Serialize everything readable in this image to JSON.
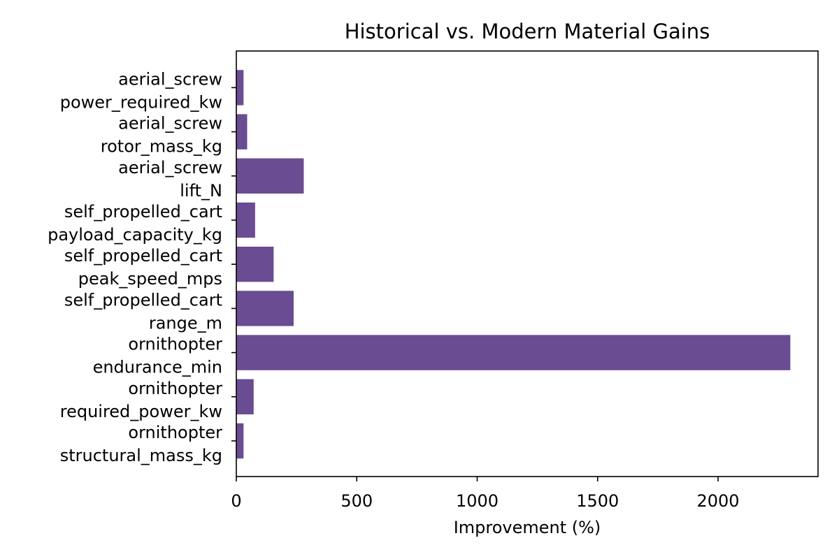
{
  "chart_data": {
    "type": "bar",
    "orientation": "horizontal",
    "title": "Historical vs. Modern Material Gains",
    "xlabel": "Improvement (%)",
    "ylabel": "",
    "xlim": [
      0,
      2415
    ],
    "x_ticks": [
      0,
      500,
      1000,
      1500,
      2000
    ],
    "grid": false,
    "bar_color": "#6a4c93",
    "categories": [
      [
        "aerial_screw",
        "power_required_kw"
      ],
      [
        "aerial_screw",
        "rotor_mass_kg"
      ],
      [
        "aerial_screw",
        "lift_N"
      ],
      [
        "self_propelled_cart",
        "payload_capacity_kg"
      ],
      [
        "self_propelled_cart",
        "peak_speed_mps"
      ],
      [
        "self_propelled_cart",
        "range_m"
      ],
      [
        "ornithopter",
        "endurance_min"
      ],
      [
        "ornithopter",
        "required_power_kw"
      ],
      [
        "ornithopter",
        "structural_mass_kg"
      ]
    ],
    "values": [
      30,
      45,
      280,
      78,
      155,
      238,
      2300,
      72,
      30
    ]
  }
}
